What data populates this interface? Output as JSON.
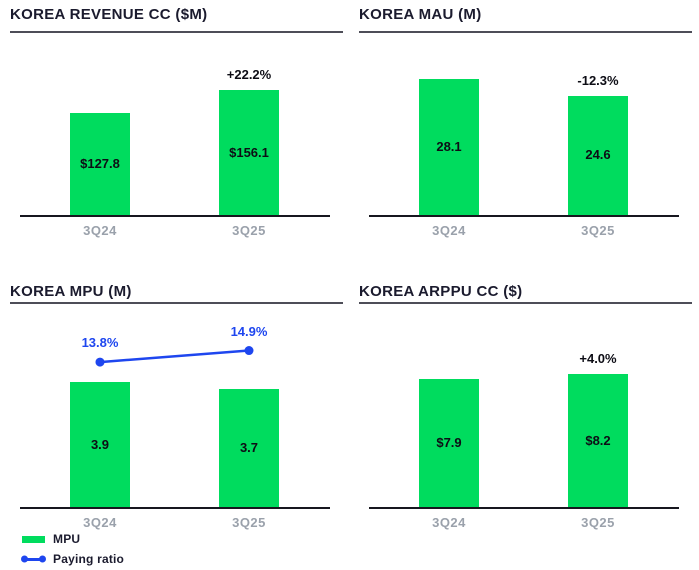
{
  "colors": {
    "bar_green": "#00DC5E",
    "line_blue": "#1E46EF",
    "title_dark": "#1B1B2E",
    "axis_dark": "#17171F",
    "rule_gray": "#4E4E58",
    "tick_gray": "#9AA1AB"
  },
  "chart_data": [
    {
      "type": "bar",
      "title": "KOREA REVENUE CC ($M)",
      "categories": [
        "3Q24",
        "3Q25"
      ],
      "values": [
        127.8,
        156.1
      ],
      "value_labels": [
        "$127.8",
        "$156.1"
      ],
      "change_label": "+22.2%",
      "xlabel": "",
      "ylabel": "",
      "ylim": [
        0,
        200
      ],
      "grid": false,
      "legend": null
    },
    {
      "type": "bar",
      "title": "KOREA MAU (M)",
      "categories": [
        "3Q24",
        "3Q25"
      ],
      "values": [
        28.1,
        24.6
      ],
      "value_labels": [
        "28.1",
        "24.6"
      ],
      "change_label": "-12.3%",
      "xlabel": "",
      "ylabel": "",
      "ylim": [
        0,
        33
      ],
      "grid": false,
      "legend": null
    },
    {
      "type": "bar+line",
      "title": "KOREA MPU (M)",
      "categories": [
        "3Q24",
        "3Q25"
      ],
      "values": [
        3.9,
        3.7
      ],
      "value_labels": [
        "3.9",
        "3.7"
      ],
      "change_label": null,
      "xlabel": "",
      "ylabel": "",
      "ylim": [
        0,
        5
      ],
      "grid": false,
      "line_series": {
        "name": "Paying ratio",
        "values": [
          13.8,
          14.9
        ],
        "labels": [
          "13.8%",
          "14.9%"
        ],
        "ylim": [
          0,
          16
        ]
      },
      "legend": [
        {
          "swatch": "bar",
          "label": "MPU"
        },
        {
          "swatch": "line",
          "label": "Paying ratio"
        }
      ],
      "legend_position": "bottom-left"
    },
    {
      "type": "bar",
      "title": "KOREA ARPPU CC ($)",
      "categories": [
        "3Q24",
        "3Q25"
      ],
      "values": [
        7.9,
        8.2
      ],
      "value_labels": [
        "$7.9",
        "$8.2"
      ],
      "change_label": "+4.0%",
      "xlabel": "",
      "ylabel": "",
      "ylim": [
        0,
        9.9
      ],
      "grid": false,
      "legend": null
    }
  ]
}
